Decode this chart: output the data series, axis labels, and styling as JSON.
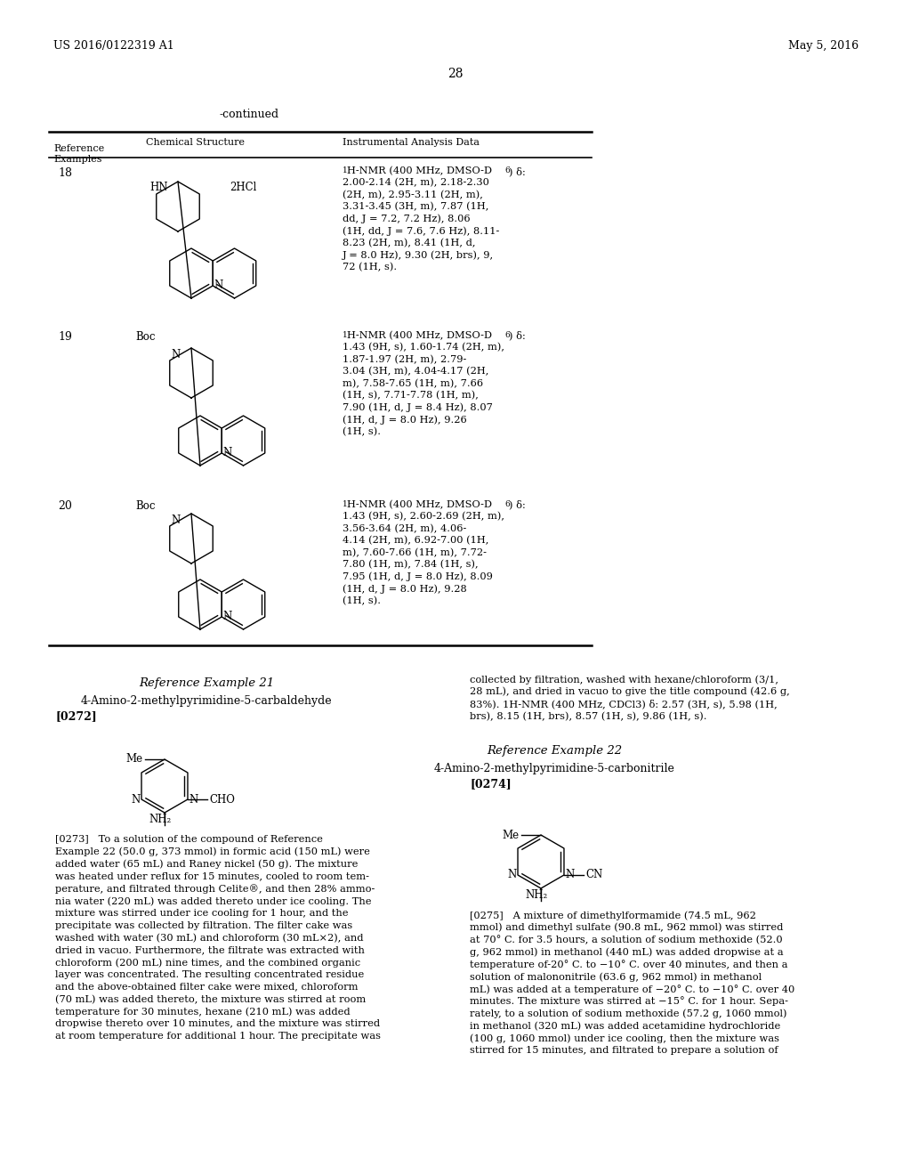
{
  "background_color": "#ffffff",
  "header_left": "US 2016/0122319 A1",
  "header_right": "May 5, 2016",
  "page_number": "28",
  "continued_label": "-continued",
  "row18_num": "18",
  "row18_nmr": "1H-NMR (400 MHz, DMSO-D6) δ:\n2.00-2.14 (2H, m), 2.18-2.30\n(2H, m), 2.95-3.11 (2H, m),\n3.31-3.45 (3H, m), 7.87 (1H,\ndd, J = 7.2, 7.2 Hz), 8.06\n(1H, dd, J = 7.6, 7.6 Hz), 8.11-\n8.23 (2H, m), 8.41 (1H, d,\nJ = 8.0 Hz), 9.30 (2H, brs), 9.\n72 (1H, s).",
  "row19_num": "19",
  "row19_nmr": "1H-NMR (400 MHz, DMSO-D6) δ:\n1.43 (9H, s), 1.60-1.74 (2H, m),\n1.87-1.97 (2H, m), 2.79-\n3.04 (3H, m), 4.04-4.17 (2H,\nm), 7.58-7.65 (1H, m), 7.66\n(1H, s), 7.71-7.78 (1H, m),\n7.90 (1H, d, J = 8.4 Hz), 8.07\n(1H, d, J = 8.0 Hz), 9.26\n(1H, s).",
  "row20_num": "20",
  "row20_nmr": "1H-NMR (400 MHz, DMSO-D6) δ:\n1.43 (9H, s), 2.60-2.69 (2H, m),\n3.56-3.64 (2H, m), 4.06-\n4.14 (2H, m), 6.92-7.00 (1H,\nm), 7.60-7.66 (1H, m), 7.72-\n7.80 (1H, m), 7.84 (1H, s),\n7.95 (1H, d, J = 8.0 Hz), 8.09\n(1H, d, J = 8.0 Hz), 9.28\n(1H, s).",
  "ref_ex21_title": "Reference Example 21",
  "ref_ex21_compound": "4-Amino-2-methylpyrimidine-5-carbaldehyde",
  "ref_ex21_paragraph": "[0272]",
  "ref_ex21_body": "[0273]   To a solution of the compound of Reference\nExample 22 (50.0 g, 373 mmol) in formic acid (150 mL) were\nadded water (65 mL) and Raney nickel (50 g). The mixture\nwas heated under reflux for 15 minutes, cooled to room tem-\nperature, and filtrated through Celite®, and then 28% ammo-\nnia water (220 mL) was added thereto under ice cooling. The\nmixture was stirred under ice cooling for 1 hour, and the\nprecipitate was collected by filtration. The filter cake was\nwashed with water (30 mL) and chloroform (30 mL×2), and\ndried in vacuo. Furthermore, the filtrate was extracted with\nchloroform (200 mL) nine times, and the combined organic\nlayer was concentrated. The resulting concentrated residue\nand the above-obtained filter cake were mixed, chloroform\n(70 mL) was added thereto, the mixture was stirred at room\ntemperature for 30 minutes, hexane (210 mL) was added\ndropwise thereto over 10 minutes, and the mixture was stirred\nat room temperature for additional 1 hour. The precipitate was",
  "ref_ex21_body_right": "collected by filtration, washed with hexane/chloroform (3/1,\n28 mL), and dried in vacuo to give the title compound (42.6 g,\n83%). 1H-NMR (400 MHz, CDCl3) δ: 2.57 (3H, s), 5.98 (1H,\nbrs), 8.15 (1H, brs), 8.57 (1H, s), 9.86 (1H, s).",
  "ref_ex22_title": "Reference Example 22",
  "ref_ex22_compound": "4-Amino-2-methylpyrimidine-5-carbonitrile",
  "ref_ex22_paragraph": "[0274]",
  "ref_ex22_body": "[0275]   A mixture of dimethylformamide (74.5 mL, 962\nmmol) and dimethyl sulfate (90.8 mL, 962 mmol) was stirred\nat 70° C. for 3.5 hours, a solution of sodium methoxide (52.0\ng, 962 mmol) in methanol (440 mL) was added dropwise at a\ntemperature of-20° C. to −10° C. over 40 minutes, and then a\nsolution of malononitrile (63.6 g, 962 mmol) in methanol\nmL) was added at a temperature of −20° C. to −10° C. over 40\nminutes. The mixture was stirred at −15° C. for 1 hour. Sepa-\nrately, to a solution of sodium methoxide (57.2 g, 1060 mmol)\nin methanol (320 mL) was added acetamidine hydrochloride\n(100 g, 1060 mmol) under ice cooling, then the mixture was\nstirred for 15 minutes, and filtrated to prepare a solution of"
}
